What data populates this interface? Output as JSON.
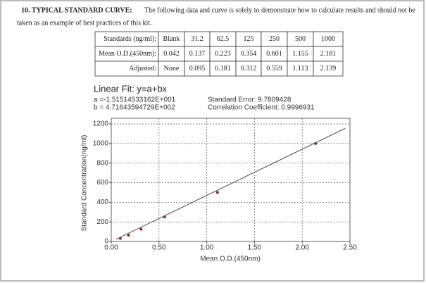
{
  "document": {
    "heading": "10. TYPICAL STANDARD CURVE:",
    "intro_line1": "The following data and curve is solely to demonstrate how to calculate results and should not be",
    "intro_line2": "taken as an example of best practices of this kit.",
    "table": {
      "rows": [
        [
          "Standards (ng/ml):",
          "Blank",
          "31.2",
          "62.5",
          "125",
          "250",
          "500",
          "1000"
        ],
        [
          "Mean O.D.(450nm):",
          "0.042",
          "0.137",
          "0.223",
          "0.354",
          "0.601",
          "1.155",
          "2.181"
        ],
        [
          "Adjusted:",
          "None",
          "0.095",
          "0.181",
          "0.312",
          "0.559",
          "1.113",
          "2.139"
        ]
      ]
    }
  },
  "chart_data": {
    "type": "scatter",
    "title": "Linear Fit: y=a+bx",
    "annotations": [
      "a =-1.51514533162E+001",
      "b = 4.71643594729E+002",
      "Standard Error: 9.7809428",
      "Correlation Coefficient: 0.9996931"
    ],
    "x_label": "Mean O.D.(450nm)",
    "y_label": "Standard Concentration(ng/ml)",
    "series": [
      {
        "type": "scatter",
        "color": "#7a3030",
        "x": [
          0.095,
          0.181,
          0.312,
          0.559,
          1.113,
          2.139
        ],
        "values": [
          31.2,
          62.5,
          125,
          250,
          500,
          1000
        ]
      },
      {
        "type": "line",
        "color": "#555555",
        "x": [
          0.05,
          2.45
        ],
        "values": [
          22,
          1154
        ]
      }
    ],
    "xlim": [
      0,
      2.5
    ],
    "xticks": [
      {
        "value": 0,
        "label": "0.00"
      },
      {
        "value": 0.5,
        "label": "0.50"
      },
      {
        "value": 1,
        "label": "1.00"
      },
      {
        "value": 1.5,
        "label": "1.50"
      },
      {
        "value": 2,
        "label": "2.00"
      },
      {
        "value": 2.5,
        "label": "2.50"
      }
    ],
    "ylim": [
      0,
      1200
    ],
    "yticks": [
      0,
      200,
      400,
      600,
      800,
      1000,
      1200
    ],
    "grid": true
  }
}
